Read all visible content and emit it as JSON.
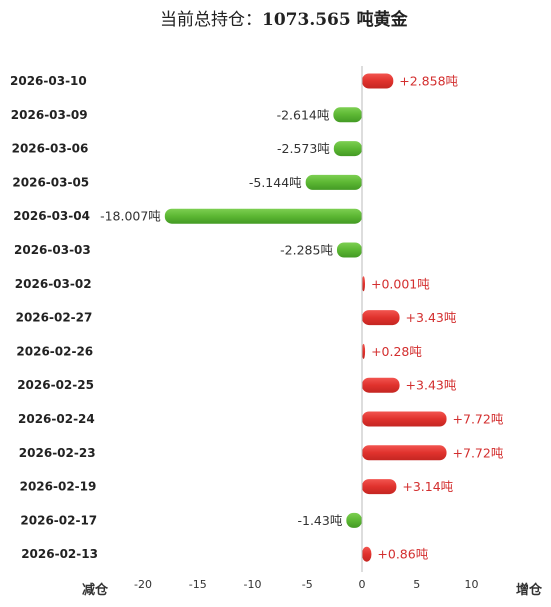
{
  "title": "当前总持仓：",
  "title_value": "1073.565 吨黄金",
  "axis_left_label": "减仓",
  "axis_right_label": "增仓",
  "colors": {
    "positive": "#e0322d",
    "negative": "#5cb733",
    "positive_text": "#d32f2f",
    "negative_text": "#333333"
  },
  "chart_data": {
    "type": "bar",
    "orientation": "horizontal",
    "categories": [
      "2026-03-10",
      "2026-03-09",
      "2026-03-06",
      "2026-03-05",
      "2026-03-04",
      "2026-03-03",
      "2026-03-02",
      "2026-02-27",
      "2026-02-26",
      "2026-02-25",
      "2026-02-24",
      "2026-02-23",
      "2026-02-19",
      "2026-02-17",
      "2026-02-13"
    ],
    "values": [
      2.858,
      -2.614,
      -2.573,
      -5.144,
      -18.007,
      -2.285,
      0.001,
      3.43,
      0.28,
      3.43,
      7.72,
      7.72,
      3.14,
      -1.43,
      0.86
    ],
    "value_labels": [
      "+2.858吨",
      "-2.614吨",
      "-2.573吨",
      "-5.144吨",
      "-18.007吨",
      "-2.285吨",
      "+0.001吨",
      "+3.43吨",
      "+0.28吨",
      "+3.43吨",
      "+7.72吨",
      "+7.72吨",
      "+3.14吨",
      "-1.43吨",
      "+0.86吨"
    ],
    "x_ticks": [
      -20,
      -15,
      -10,
      -5,
      0,
      5,
      10
    ],
    "xlim": [
      -20,
      10
    ],
    "grid": false,
    "legend": "none"
  }
}
